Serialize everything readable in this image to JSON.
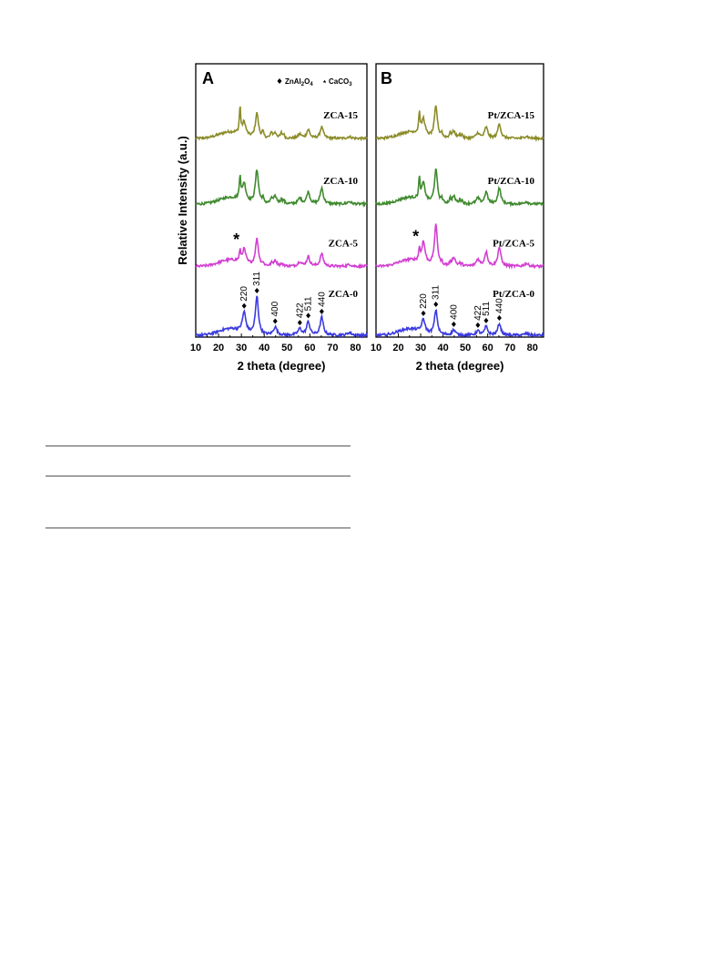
{
  "chart_data": [
    {
      "type": "line",
      "panel_label": "A",
      "xlabel": "2 theta (degree)",
      "ylabel": "Relative Intensity (a.u.)",
      "xlim": [
        10,
        85
      ],
      "xticks": [
        "10",
        "20",
        "30",
        "40",
        "50",
        "60",
        "70",
        "80"
      ],
      "legend": {
        "diamond": "ZnAl2O4",
        "star": "CaCO3"
      },
      "series": [
        {
          "name": "ZCA-15",
          "color": "#8c8c2a",
          "offset": 3.0,
          "calcite": 0.9,
          "spinel": 0.55
        },
        {
          "name": "ZCA-10",
          "color": "#3f8a2e",
          "offset": 2.0,
          "calcite": 0.8,
          "spinel": 0.75
        },
        {
          "name": "ZCA-5",
          "color": "#d23fd2",
          "offset": 1.05,
          "calcite": 0.35,
          "spinel": 0.6
        },
        {
          "name": "ZCA-0",
          "color": "#3b3be0",
          "offset": 0.0,
          "calcite": 0.0,
          "spinel": 0.85
        }
      ],
      "peaks": [
        {
          "x": 31.2,
          "label": "220"
        },
        {
          "x": 36.8,
          "label": "311"
        },
        {
          "x": 44.8,
          "label": "400"
        },
        {
          "x": 55.6,
          "label": "422"
        },
        {
          "x": 59.3,
          "label": "511"
        },
        {
          "x": 65.2,
          "label": "440"
        }
      ],
      "star_marker": {
        "x": 29.4,
        "series": "ZCA-5"
      }
    },
    {
      "type": "line",
      "panel_label": "B",
      "xlabel": "2 theta (degree)",
      "xlim": [
        10,
        85
      ],
      "xticks": [
        "10",
        "20",
        "30",
        "40",
        "50",
        "60",
        "70",
        "80"
      ],
      "series": [
        {
          "name": "Pt/ZCA-15",
          "color": "#8c8c2a",
          "offset": 3.0,
          "calcite": 0.7,
          "spinel": 0.7
        },
        {
          "name": "Pt/ZCA-10",
          "color": "#3f8a2e",
          "offset": 2.0,
          "calcite": 0.7,
          "spinel": 0.75
        },
        {
          "name": "Pt/ZCA-5",
          "color": "#d23fd2",
          "offset": 1.05,
          "calcite": 0.4,
          "spinel": 0.9
        },
        {
          "name": "Pt/ZCA-0",
          "color": "#3b3be0",
          "offset": 0.0,
          "calcite": 0.0,
          "spinel": 0.55
        }
      ],
      "peaks": [
        {
          "x": 31.2,
          "label": "220"
        },
        {
          "x": 36.8,
          "label": "311"
        },
        {
          "x": 44.8,
          "label": "400"
        },
        {
          "x": 55.6,
          "label": "422"
        },
        {
          "x": 59.3,
          "label": "511"
        },
        {
          "x": 65.2,
          "label": "440"
        }
      ],
      "star_marker": {
        "x": 29.4,
        "series": "Pt/ZCA-5"
      }
    }
  ]
}
